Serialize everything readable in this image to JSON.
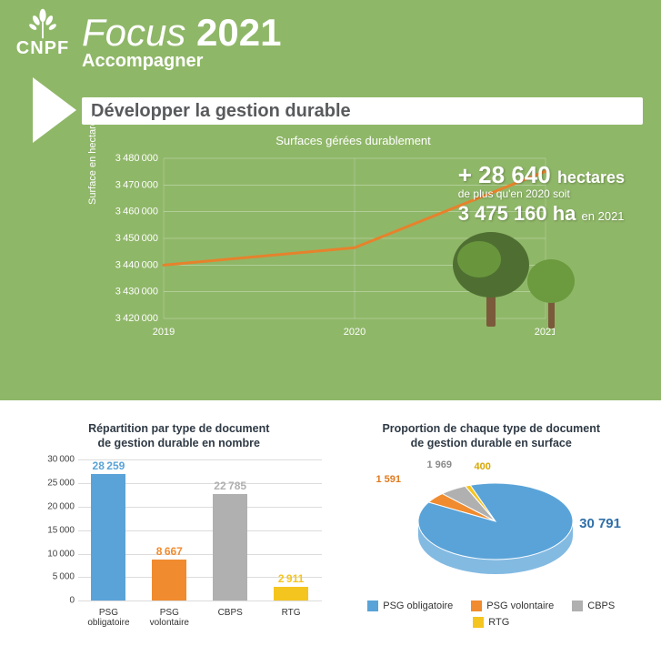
{
  "logo_text": "CNPF",
  "title_prefix": "Focus",
  "title_year": "2021",
  "subtitle": "Accompagner",
  "section_title": "Développer la gestion durable",
  "line_chart": {
    "title": "Surfaces gérées durablement",
    "y_label": "Surface en hectares",
    "ymin": 3420000,
    "ymax": 3480000,
    "ystep": 10000,
    "x_labels": [
      "2019",
      "2020",
      "2021"
    ],
    "values": [
      3440000,
      3446500,
      3475160
    ],
    "line_color": "#e6822c",
    "line_width": 3,
    "grid_color": "#ffffff",
    "label_color": "#ffffff",
    "font_size": 11
  },
  "stat": {
    "main_prefix": "+ ",
    "main_number": "28 640",
    "main_unit": "hectares",
    "sub1": "de plus qu'en 2020 soit",
    "big2": "3 475 160 ha",
    "big2_suffix": "en 2021"
  },
  "tree_colors": {
    "dark": "#4f6f32",
    "light": "#6c9a3e",
    "trunk": "#7a5a3a"
  },
  "bar_chart": {
    "title": "Répartition par type de document\nde gestion durable en nombre",
    "ymin": 0,
    "ymax": 30000,
    "ystep": 5000,
    "grid_color": "#dcdcdc",
    "tick_font_size": 10,
    "value_font_size": 12,
    "categories": [
      {
        "name_l1": "PSG",
        "name_l2": "obligatoire",
        "value": 28259,
        "color": "#5aa3d8"
      },
      {
        "name_l1": "PSG",
        "name_l2": "volontaire",
        "value": 8667,
        "color": "#f08b2f"
      },
      {
        "name_l1": "CBPS",
        "name_l2": "",
        "value": 22785,
        "color": "#b0b0b0"
      },
      {
        "name_l1": "RTG",
        "name_l2": "",
        "value": 2911,
        "color": "#f5c51f"
      }
    ]
  },
  "pie_chart": {
    "title": "Proportion de chaque type de document\nde gestion durable en surface",
    "slices": [
      {
        "label": "PSG obligatoire",
        "value": 30791,
        "color": "#5aa3d8"
      },
      {
        "label": "PSG volontaire",
        "value": 1591,
        "color": "#f08b2f"
      },
      {
        "label": "CBPS",
        "value": 1969,
        "color": "#b0b0b0"
      },
      {
        "label": "RTG",
        "value": 400,
        "color": "#f5c51f"
      }
    ],
    "label_values": {
      "big": "30 791",
      "orange": "1 591",
      "grey": "1 969",
      "yellow": "400"
    },
    "label_colors": {
      "big": "#2f6fa8",
      "orange": "#e07a1f",
      "grey": "#8a8a8a",
      "yellow": "#d9a700"
    },
    "tilt_stroke": "#ffffff"
  }
}
